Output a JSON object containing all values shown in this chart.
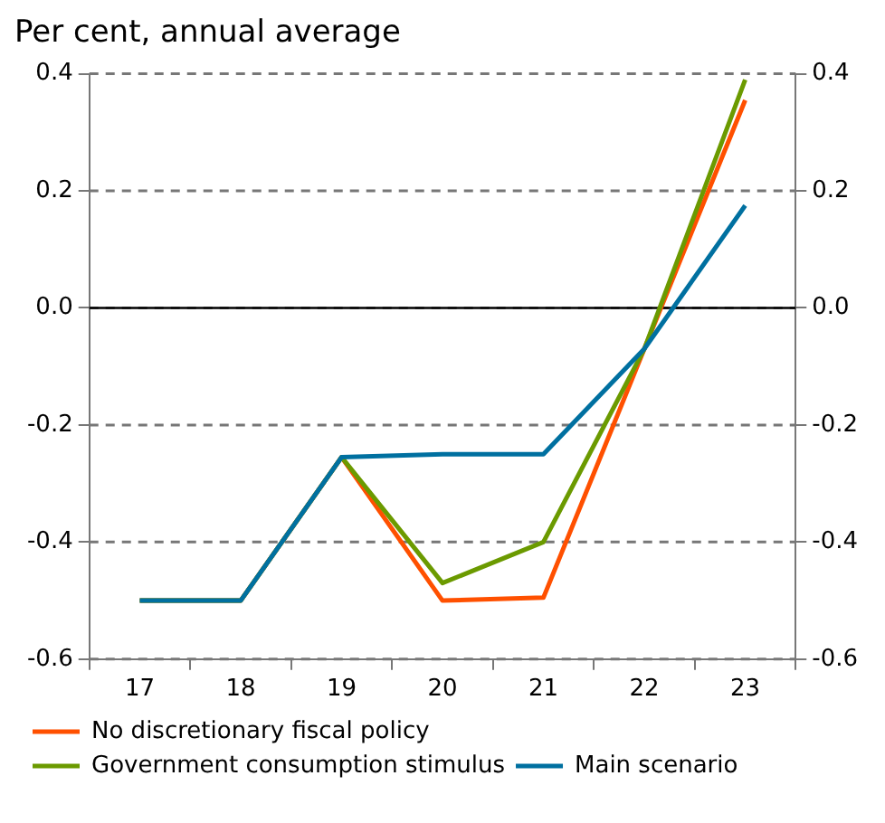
{
  "chart_data": {
    "type": "line",
    "subtitle": "Per cent, annual average",
    "categories": [
      "17",
      "18",
      "19",
      "20",
      "21",
      "22",
      "23"
    ],
    "series": [
      {
        "name": "No discretionary fiscal policy",
        "color": "#ff5000",
        "values": [
          -0.5,
          -0.5,
          -0.255,
          -0.5,
          -0.495,
          -0.07,
          0.355
        ]
      },
      {
        "name": "Government consumption stimulus",
        "color": "#6b9a00",
        "values": [
          -0.5,
          -0.5,
          -0.255,
          -0.47,
          -0.4,
          -0.07,
          0.39
        ]
      },
      {
        "name": "Main scenario",
        "color": "#0070a0",
        "values": [
          -0.5,
          -0.5,
          -0.255,
          -0.25,
          -0.25,
          -0.07,
          0.175
        ]
      }
    ],
    "ylim": [
      -0.6,
      0.4
    ],
    "yticks": [
      {
        "value": -0.6,
        "label": "-0.6"
      },
      {
        "value": -0.4,
        "label": "-0.4"
      },
      {
        "value": -0.2,
        "label": "-0.2"
      },
      {
        "value": 0,
        "label": "0.0"
      },
      {
        "value": 0.2,
        "label": "0.2"
      },
      {
        "value": 0.4,
        "label": "0.4"
      }
    ],
    "y2lim": [
      -0.6,
      0.4
    ],
    "y2ticks": [
      {
        "value": -0.6,
        "label": "-0.6"
      },
      {
        "value": -0.4,
        "label": "-0.4"
      },
      {
        "value": -0.2,
        "label": "-0.2"
      },
      {
        "value": 0,
        "label": "0.0"
      },
      {
        "value": 0.2,
        "label": "0.2"
      },
      {
        "value": 0.4,
        "label": "0.4"
      }
    ],
    "ref_lines": [
      {
        "axis": "y",
        "value": 0,
        "color": "#000000",
        "line_style": "solid"
      }
    ],
    "grid": "y",
    "legend": "bottom",
    "marker": "none",
    "line_style": "solid"
  }
}
